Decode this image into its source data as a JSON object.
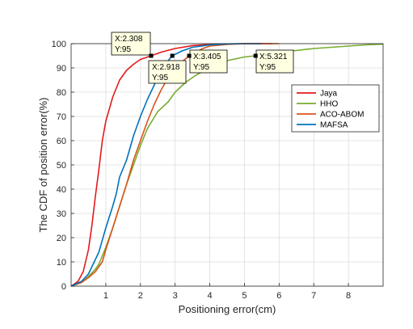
{
  "chart_data": {
    "type": "line",
    "xlabel": "Positioning error(cm)",
    "ylabel": "The CDF of position error(%)",
    "xlim": [
      0,
      9
    ],
    "ylim": [
      0,
      100
    ],
    "x_ticks": [
      1,
      2,
      3,
      4,
      5,
      6,
      7,
      8
    ],
    "y_ticks": [
      0,
      10,
      20,
      30,
      40,
      50,
      60,
      70,
      80,
      90,
      100
    ],
    "x_tick_labels": [
      "1",
      "2",
      "3",
      "4",
      "5",
      "6",
      "7",
      "8"
    ],
    "y_tick_labels": [
      "0",
      "10",
      "20",
      "30",
      "40",
      "50",
      "60",
      "70",
      "80",
      "90",
      "100"
    ],
    "grid": true,
    "legend_position": "right",
    "series": [
      {
        "name": "Jaya",
        "color": "#e31a1c",
        "x": [
          0,
          0.2,
          0.35,
          0.5,
          0.6,
          0.7,
          0.8,
          0.9,
          1.0,
          1.1,
          1.2,
          1.4,
          1.6,
          1.8,
          2.0,
          2.308,
          2.6,
          3.0,
          3.5,
          4.0,
          5.0,
          5.8
        ],
        "y": [
          0,
          2,
          6,
          15,
          25,
          37,
          48,
          60,
          68,
          73,
          78,
          85,
          89,
          91.5,
          93.5,
          95,
          96.5,
          98,
          99.2,
          99.7,
          100,
          100
        ]
      },
      {
        "name": "HHO",
        "color": "#77ac30",
        "x": [
          0,
          0.3,
          0.5,
          0.7,
          0.8,
          1.0,
          1.2,
          1.4,
          1.6,
          1.8,
          2.0,
          2.2,
          2.5,
          2.8,
          3.0,
          3.3,
          3.6,
          4.0,
          4.5,
          5.0,
          5.321,
          5.8,
          6.5,
          7.0,
          7.5,
          8.0,
          8.5,
          9.0
        ],
        "y": [
          0,
          1.5,
          4,
          7,
          9,
          16,
          24,
          33,
          42,
          50,
          58,
          65,
          72,
          76,
          80,
          84,
          87,
          90,
          93,
          94.5,
          95,
          96.5,
          97.2,
          98,
          98.5,
          99,
          99.5,
          99.8
        ]
      },
      {
        "name": "ACO-ABOM",
        "color": "#d95319",
        "x": [
          0,
          0.3,
          0.5,
          0.7,
          0.9,
          1.0,
          1.2,
          1.4,
          1.6,
          1.8,
          2.0,
          2.2,
          2.4,
          2.6,
          2.8,
          3.0,
          3.2,
          3.405,
          3.6,
          3.8,
          4.0,
          4.5,
          5.0,
          6.0
        ],
        "y": [
          0,
          1.5,
          3.5,
          6,
          10,
          15,
          24,
          33,
          42,
          52,
          60,
          68,
          75,
          81,
          86,
          89,
          92.5,
          95,
          96.5,
          98,
          99,
          99.7,
          100,
          100
        ]
      },
      {
        "name": "MAFSA",
        "color": "#0072bd",
        "x": [
          0,
          0.3,
          0.5,
          0.6,
          0.8,
          1.0,
          1.2,
          1.3,
          1.4,
          1.6,
          1.8,
          2.0,
          2.2,
          2.4,
          2.6,
          2.8,
          2.918,
          3.2,
          3.5,
          4.0,
          4.5,
          5.0,
          5.5
        ],
        "y": [
          0,
          2,
          5,
          8,
          14,
          24,
          33,
          38,
          45,
          52,
          62,
          70,
          77,
          83,
          89,
          93,
          95,
          97,
          98.5,
          99.5,
          99.9,
          100,
          100
        ]
      }
    ],
    "annotations": [
      {
        "series": "Jaya",
        "x": 2.308,
        "y": 95,
        "x_text": "X:2.308",
        "y_text": "Y:95"
      },
      {
        "series": "MAFSA",
        "x": 2.918,
        "y": 95,
        "x_text": "X:2.918",
        "y_text": "Y:95"
      },
      {
        "series": "ACO-ABOM",
        "x": 3.405,
        "y": 95,
        "x_text": "X:3.405",
        "y_text": "Y:95"
      },
      {
        "series": "HHO",
        "x": 5.321,
        "y": 95,
        "x_text": "X:5.321",
        "y_text": "Y:95"
      }
    ]
  }
}
